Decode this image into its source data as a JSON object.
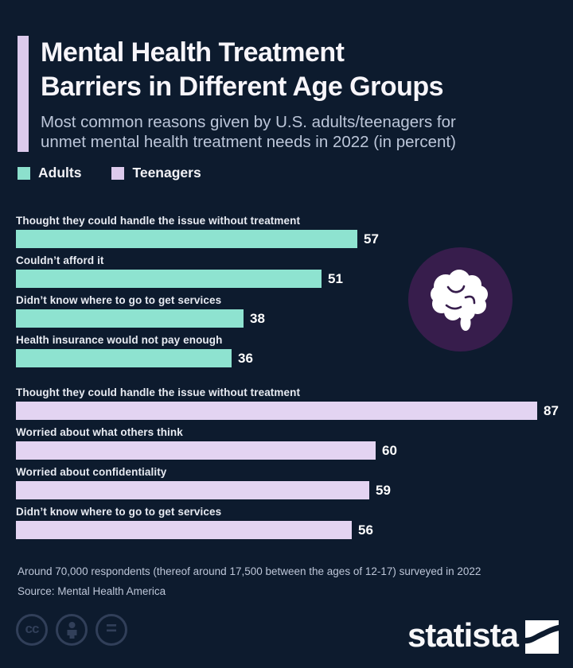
{
  "header": {
    "title_line1": "Mental Health Treatment",
    "title_line2": "Barriers in Different Age Groups",
    "subtitle_line1": "Most common reasons given by U.S. adults/teenagers for",
    "subtitle_line2": "unmet mental health treatment needs in 2022 (in percent)"
  },
  "legend": [
    {
      "label": "Adults",
      "color": "#8ce0cd"
    },
    {
      "label": "Teenagers",
      "color": "#dccaec"
    }
  ],
  "chart_data": {
    "type": "bar",
    "orientation": "horizontal",
    "unit": "percent",
    "xlim": [
      0,
      87
    ],
    "grid": false,
    "series": [
      {
        "name": "Adults",
        "color": "#8ee3d0",
        "points": [
          {
            "label": "Thought they could handle the issue without treatment",
            "value": 57
          },
          {
            "label": "Couldn’t afford it",
            "value": 51
          },
          {
            "label": "Didn’t know where to go to get services",
            "value": 38
          },
          {
            "label": "Health insurance would not pay enough",
            "value": 36
          }
        ]
      },
      {
        "name": "Teenagers",
        "color": "#e3d4f2",
        "points": [
          {
            "label": "Thought they could handle the issue without treatment",
            "value": 87
          },
          {
            "label": "Worried about what others think",
            "value": 60
          },
          {
            "label": "Worried about confidentiality",
            "value": 59
          },
          {
            "label": "Didn’t know where to go to get services",
            "value": 56
          }
        ]
      }
    ]
  },
  "colors": {
    "background": "#0d1b2e",
    "accent": "#dccaec",
    "badge_circle": "#371d4c"
  },
  "footer": {
    "note": "Around 70,000 respondents (thereof around 17,500 between the ages of 12-17) surveyed in 2022",
    "source": "Source: Mental Health America",
    "brand": "statista",
    "license_icons": [
      "cc",
      "by-person",
      "equals"
    ]
  }
}
